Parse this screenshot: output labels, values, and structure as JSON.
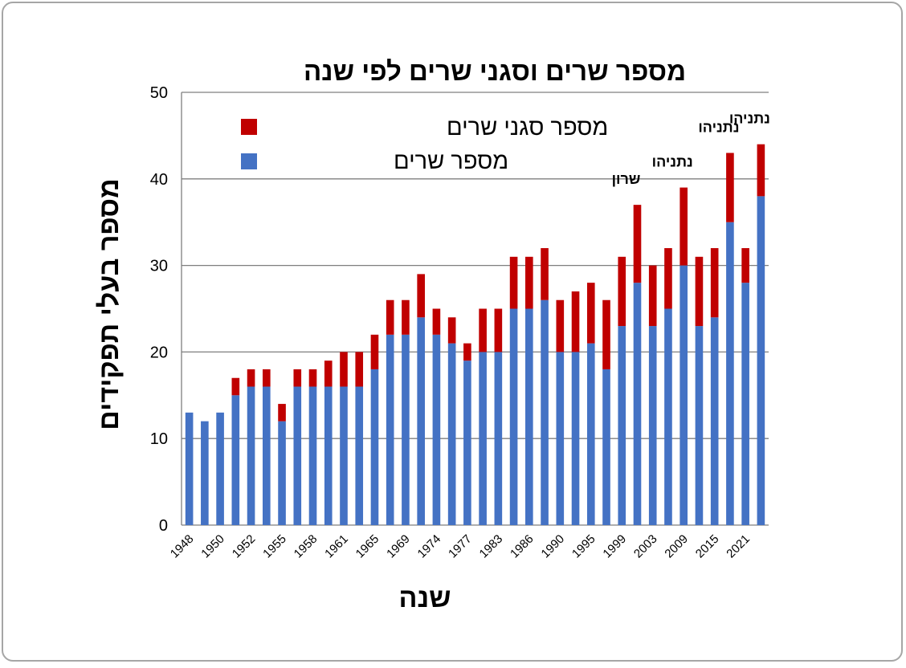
{
  "chart_data": {
    "type": "bar",
    "stacked": true,
    "title": "מספר שרים וסגני שרים לפי שנה",
    "xlabel": "שנה",
    "ylabel": "מספר בעלי תפקידים",
    "ylim": [
      0,
      50
    ],
    "yticks": [
      0,
      10,
      20,
      30,
      40,
      50
    ],
    "grid": true,
    "legend_position": "top-left",
    "categories": [
      1948,
      1949,
      1950,
      1951,
      1952,
      1953,
      1955,
      1956,
      1958,
      1959,
      1961,
      1963,
      1965,
      1966,
      1969,
      1970,
      1974,
      1975,
      1977,
      1979,
      1983,
      1984,
      1986,
      1988,
      1990,
      1992,
      1995,
      1996,
      1999,
      2001,
      2003,
      2006,
      2009,
      2013,
      2015,
      2020,
      2021,
      2022
    ],
    "x_tick_labels": [
      "1948",
      "1950",
      "1952",
      "1955",
      "1958",
      "1961",
      "1965",
      "1969",
      "1974",
      "1977",
      "1983",
      "1986",
      "1990",
      "1995",
      "1999",
      "2003",
      "2009",
      "2015",
      "2021"
    ],
    "x_tick_label_indices": [
      0,
      2,
      4,
      6,
      8,
      10,
      12,
      14,
      16,
      18,
      20,
      22,
      24,
      26,
      28,
      30,
      32,
      34,
      36
    ],
    "series": [
      {
        "name": "מספר שרים",
        "color": "#4472c4",
        "values": [
          13,
          12,
          13,
          15,
          16,
          16,
          12,
          16,
          16,
          16,
          16,
          16,
          18,
          22,
          22,
          24,
          22,
          21,
          19,
          20,
          20,
          25,
          25,
          26,
          20,
          20,
          21,
          18,
          23,
          28,
          23,
          25,
          30,
          23,
          24,
          35,
          28,
          38
        ]
      },
      {
        "name": "מספר סגני שרים",
        "color": "#c00000",
        "values": [
          0,
          0,
          0,
          2,
          2,
          2,
          2,
          2,
          2,
          3,
          4,
          4,
          4,
          4,
          4,
          5,
          3,
          3,
          2,
          5,
          5,
          6,
          6,
          6,
          6,
          7,
          7,
          8,
          8,
          9,
          7,
          7,
          9,
          8,
          8,
          8,
          4,
          6
        ]
      }
    ],
    "annotations": [
      {
        "text": "שרון",
        "category_index": 29
      },
      {
        "text": "נתניהו",
        "category_index": 32
      },
      {
        "text": "נתניהו",
        "category_index": 35
      },
      {
        "text": "נתניהו",
        "category_index": 37
      }
    ]
  }
}
